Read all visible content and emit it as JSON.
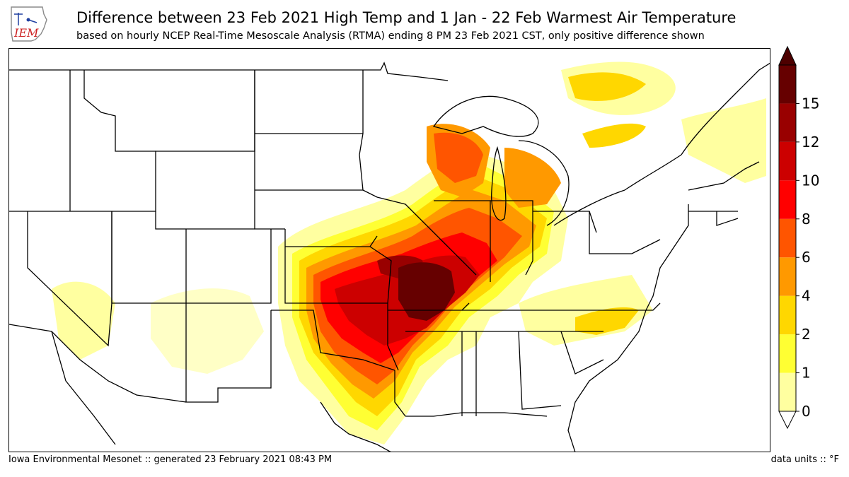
{
  "header": {
    "logo_text": "IEM",
    "title": "Difference between 23 Feb 2021 High Temp and 1 Jan - 22 Feb Warmest Air Temperature",
    "subtitle": "based on hourly NCEP Real-Time Mesoscale Analysis (RTMA) ending 8 PM 23 Feb 2021 CST, only positive difference shown"
  },
  "footer": {
    "credit": "Iowa Environmental Mesonet :: generated 23 February 2021 08:43 PM",
    "units": "data units :: °F"
  },
  "colorbar": {
    "ticks": [
      "15",
      "12",
      "10",
      "8",
      "6",
      "4",
      "2",
      "1",
      "0"
    ],
    "levels": [
      0,
      1,
      2,
      4,
      6,
      8,
      10,
      12,
      15
    ],
    "colors": [
      "#ffffa0",
      "#ffff33",
      "#ffd700",
      "#ff9900",
      "#ff5500",
      "#ff0000",
      "#cc0000",
      "#990000",
      "#660000"
    ],
    "under_color": "#ffffff",
    "over_color": "#4d0000"
  }
}
